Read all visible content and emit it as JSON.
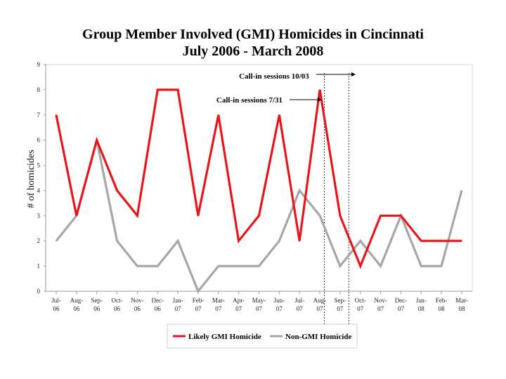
{
  "chart_data": {
    "type": "line",
    "title_line1": "Group Member Involved (GMI) Homicides in Cincinnati",
    "title_line2": "July 2006 - March 2008",
    "xlabel": "",
    "ylabel": "# of homicides",
    "ylim": [
      0,
      9
    ],
    "yticks": [
      "0",
      "1",
      "2",
      "3",
      "4",
      "5",
      "6",
      "7",
      "8",
      "9"
    ],
    "categories": [
      [
        "Jul-",
        "06"
      ],
      [
        "Aug-",
        "06"
      ],
      [
        "Sep-",
        "06"
      ],
      [
        "Oct-",
        "06"
      ],
      [
        "Nov-",
        "06"
      ],
      [
        "Dec-",
        "06"
      ],
      [
        "Jan-",
        "07"
      ],
      [
        "Feb-",
        "07"
      ],
      [
        "Mar-",
        "07"
      ],
      [
        "Apr-",
        "07"
      ],
      [
        "May-",
        "07"
      ],
      [
        "Jun-",
        "07"
      ],
      [
        "Jul-",
        "07"
      ],
      [
        "Aug-",
        "07"
      ],
      [
        "Sep-",
        "07"
      ],
      [
        "Oct-",
        "07"
      ],
      [
        "Nov-",
        "07"
      ],
      [
        "Dec-",
        "07"
      ],
      [
        "Jan-",
        "08"
      ],
      [
        "Feb-",
        "08"
      ],
      [
        "Mar-",
        "08"
      ]
    ],
    "series": [
      {
        "name": "Likely GMI Homicide",
        "color": "#e8161b",
        "values": [
          7,
          3,
          6,
          4,
          3,
          8,
          8,
          3,
          7,
          2,
          3,
          7,
          2,
          8,
          3,
          1,
          3,
          3,
          2,
          2,
          2
        ]
      },
      {
        "name": "Non-GMI Homicide",
        "color": "#a6a6a6",
        "values": [
          2,
          3,
          6,
          2,
          1,
          1,
          2,
          0,
          1,
          1,
          1,
          2,
          4,
          3,
          1,
          2,
          1,
          3,
          1,
          1,
          4
        ]
      }
    ],
    "annotations": [
      {
        "label": "Call-in sessions 10/03",
        "at_index": 14.5
      },
      {
        "label": "Call-in sessions 7/31",
        "at_index": 13.5
      }
    ],
    "grid": false,
    "legend_position": "bottom"
  }
}
